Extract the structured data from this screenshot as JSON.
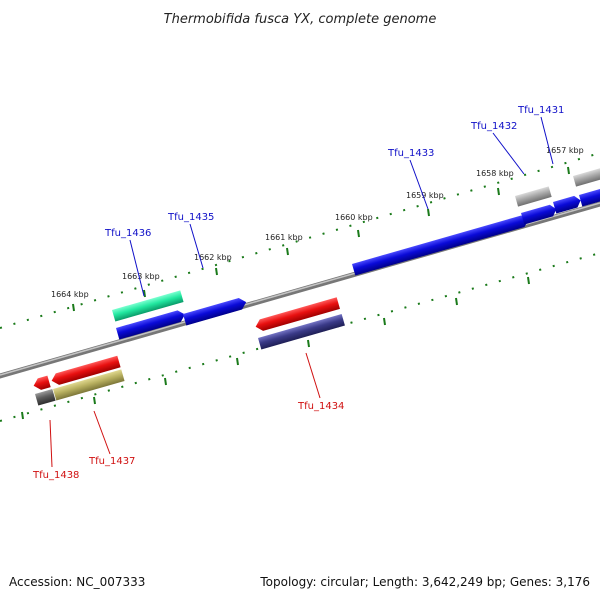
{
  "header": {
    "title": "Thermobifida fusca YX, complete genome"
  },
  "footer": {
    "accession": "Accession: NC_007333",
    "topology": "Topology: circular; Length: 3,642,249 bp; Genes: 3,176"
  },
  "ticks": [
    "1664 kbp",
    "1663 kbp",
    "1662 kbp",
    "1661 kbp",
    "1660 kbp",
    "1659 kbp",
    "1658 kbp",
    "1657 kbp"
  ],
  "genes": {
    "forward": [
      "Tfu_1436",
      "Tfu_1435",
      "Tfu_1433",
      "Tfu_1432",
      "Tfu_1431"
    ],
    "reverse": [
      "Tfu_1438",
      "Tfu_1437",
      "Tfu_1434"
    ]
  },
  "colors": {
    "forward_label": "#1010c8",
    "reverse_label": "#d01010",
    "cds_blue": "#0a0ad8",
    "cds_red": "#e81010",
    "cds_green": "#22e8a0",
    "cds_navy": "#3a3a88",
    "cds_olive": "#b8b060",
    "cds_gray": "#a8a8a8",
    "tick_green": "#1a7a1a",
    "backbone": "#8a8a8a"
  }
}
